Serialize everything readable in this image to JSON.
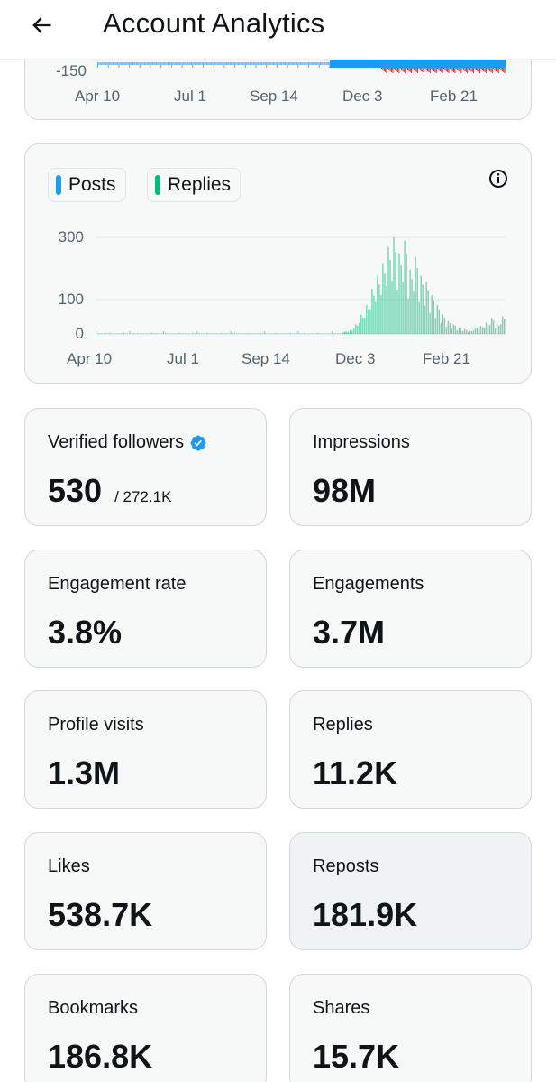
{
  "header": {
    "title": "Account Analytics",
    "back_icon": "arrow-left-icon"
  },
  "chart_top": {
    "type": "bar",
    "y_label_visible": "-150",
    "x_ticks": [
      "Apr 10",
      "Jul 1",
      "Sep 14",
      "Dec 3",
      "Feb 21"
    ],
    "colors": {
      "positive": "#1d9bf0",
      "negative": "#f4212e"
    }
  },
  "chart_data": {
    "type": "bar",
    "title": "",
    "series": [
      {
        "name": "Posts",
        "color": "#1d9bf0"
      },
      {
        "name": "Replies",
        "color": "#00ba7c"
      }
    ],
    "x_ticks": [
      "Apr 10",
      "Jul 1",
      "Sep 14",
      "Dec 3",
      "Feb 21"
    ],
    "y_ticks": [
      "300",
      "100",
      "0"
    ],
    "ylim": [
      0,
      300
    ],
    "replies_peak_values": [
      8,
      12,
      30,
      60,
      90,
      140,
      180,
      220,
      270,
      300,
      250,
      290,
      200,
      240,
      180,
      160,
      120,
      90,
      60,
      40,
      30,
      20,
      15,
      10,
      20,
      25,
      35,
      50,
      30,
      55
    ]
  },
  "legend": {
    "posts_label": "Posts",
    "replies_label": "Replies",
    "info_icon": "info-icon"
  },
  "stats": [
    {
      "id": "verified-followers",
      "label": "Verified followers",
      "value": "530",
      "sub": "/ 272.1K",
      "verified": true
    },
    {
      "id": "impressions",
      "label": "Impressions",
      "value": "98M"
    },
    {
      "id": "engagement-rate",
      "label": "Engagement rate",
      "value": "3.8%"
    },
    {
      "id": "engagements",
      "label": "Engagements",
      "value": "3.7M"
    },
    {
      "id": "profile-visits",
      "label": "Profile visits",
      "value": "1.3M"
    },
    {
      "id": "replies",
      "label": "Replies",
      "value": "11.2K"
    },
    {
      "id": "likes",
      "label": "Likes",
      "value": "538.7K"
    },
    {
      "id": "reposts",
      "label": "Reposts",
      "value": "181.9K"
    },
    {
      "id": "bookmarks",
      "label": "Bookmarks",
      "value": "186.8K"
    },
    {
      "id": "shares",
      "label": "Shares",
      "value": "15.7K"
    }
  ],
  "colors": {
    "accent": "#1d9bf0",
    "replies": "#00ba7c",
    "negative": "#f4212e",
    "text": "#0f1419",
    "muted": "#536471"
  }
}
